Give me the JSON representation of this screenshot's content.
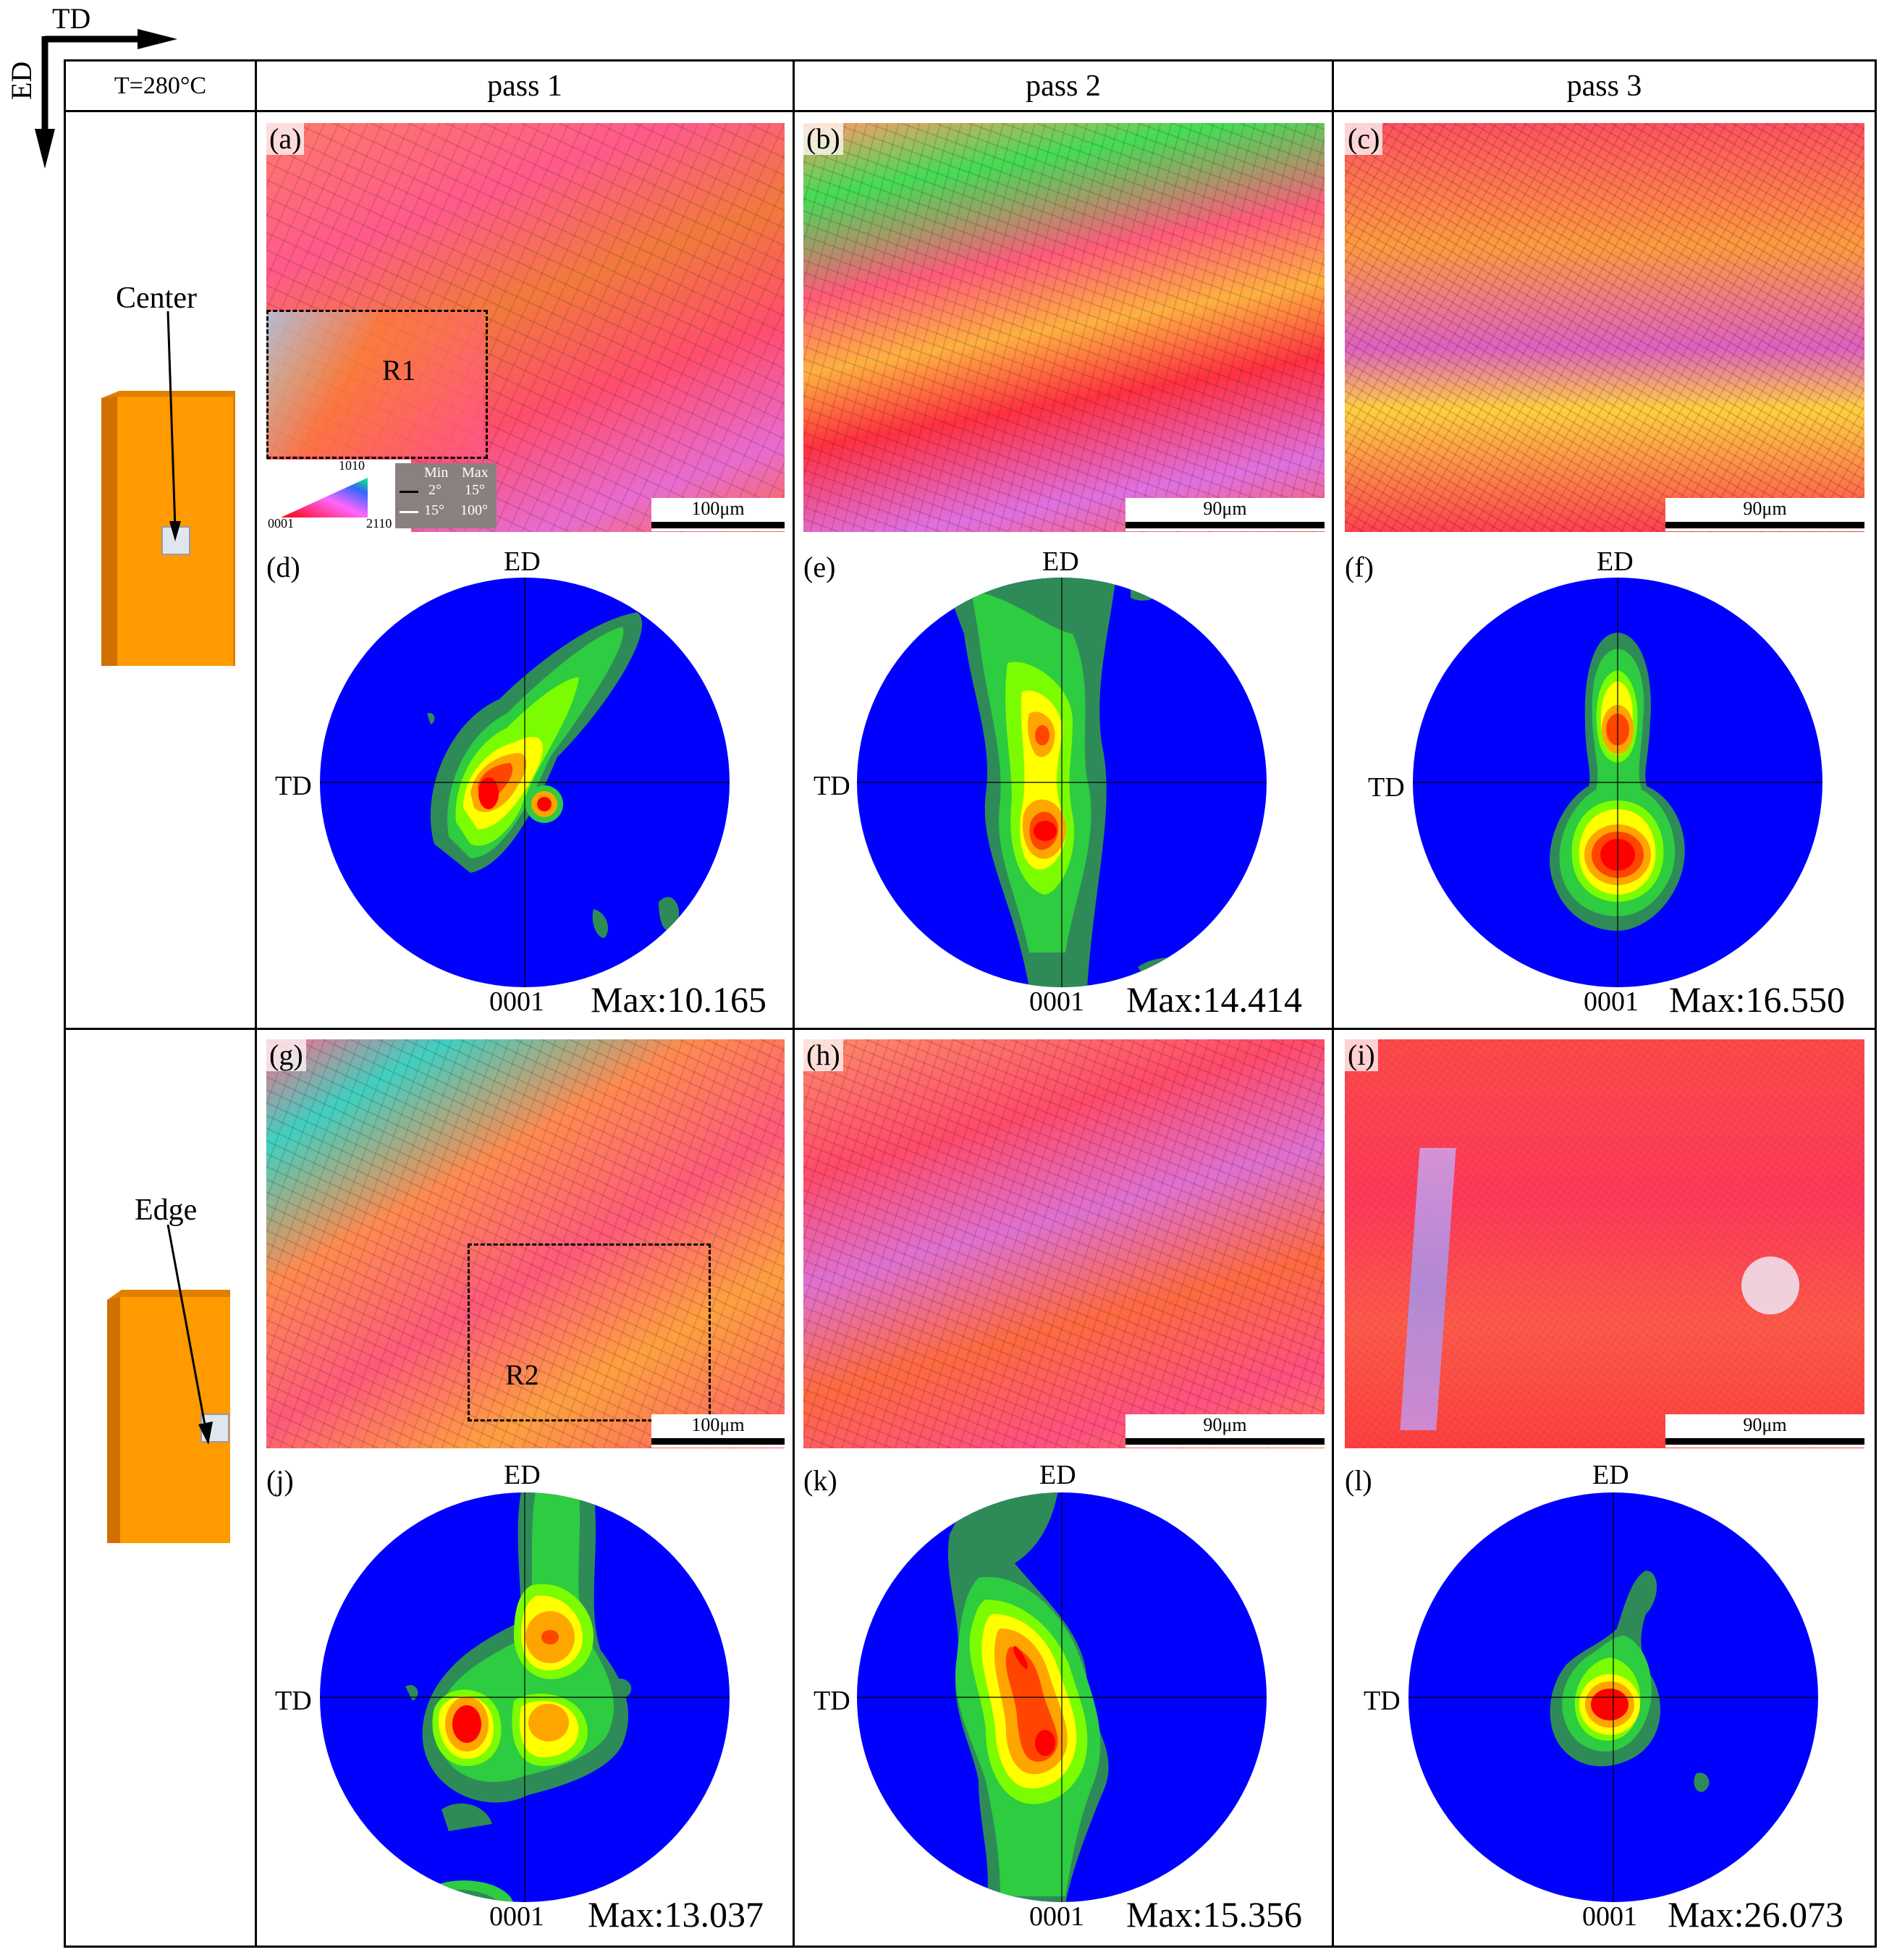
{
  "axes_indicator": {
    "horizontal": "TD",
    "vertical": "ED"
  },
  "header": {
    "temperature": "T=280°C",
    "columns": [
      "pass 1",
      "pass 2",
      "pass 3"
    ]
  },
  "rows": [
    {
      "location_label": "Center"
    },
    {
      "location_label": "Edge"
    }
  ],
  "ebsd_maps": [
    {
      "panel": "(a)",
      "scale": "100μm",
      "region": "R1"
    },
    {
      "panel": "(b)",
      "scale": "90μm"
    },
    {
      "panel": "(c)",
      "scale": "90μm"
    },
    {
      "panel": "(g)",
      "scale": "100μm",
      "region": "R2"
    },
    {
      "panel": "(h)",
      "scale": "90μm"
    },
    {
      "panel": "(i)",
      "scale": "90μm"
    }
  ],
  "legend": {
    "ipf_triangle": {
      "top": "1010",
      "left": "0001",
      "right": "2110"
    },
    "boundary_table": {
      "header": [
        "Min",
        "Max"
      ],
      "rows": [
        [
          "2°",
          "15°"
        ],
        [
          "15°",
          "100°"
        ]
      ]
    }
  },
  "pole_figures": [
    {
      "panel": "(d)",
      "top": "ED",
      "left": "TD",
      "plane": "0001",
      "max": "Max:10.165"
    },
    {
      "panel": "(e)",
      "top": "ED",
      "left": "TD",
      "plane": "0001",
      "max": "Max:14.414"
    },
    {
      "panel": "(f)",
      "top": "ED",
      "left": "TD",
      "plane": "0001",
      "max": "Max:16.550"
    },
    {
      "panel": "(j)",
      "top": "ED",
      "left": "TD",
      "plane": "0001",
      "max": "Max:13.037"
    },
    {
      "panel": "(k)",
      "top": "ED",
      "left": "TD",
      "plane": "0001",
      "max": "Max:15.356"
    },
    {
      "panel": "(l)",
      "top": "ED",
      "left": "TD",
      "plane": "0001",
      "max": "Max:26.073"
    }
  ],
  "colors": {
    "sample": "#ff9a00",
    "pf_background": "#0000ff",
    "pf_levels": [
      "#2e8b57",
      "#2ecc40",
      "#7cfc00",
      "#ffff00",
      "#ffa500",
      "#ff4500",
      "#ff0000"
    ]
  }
}
